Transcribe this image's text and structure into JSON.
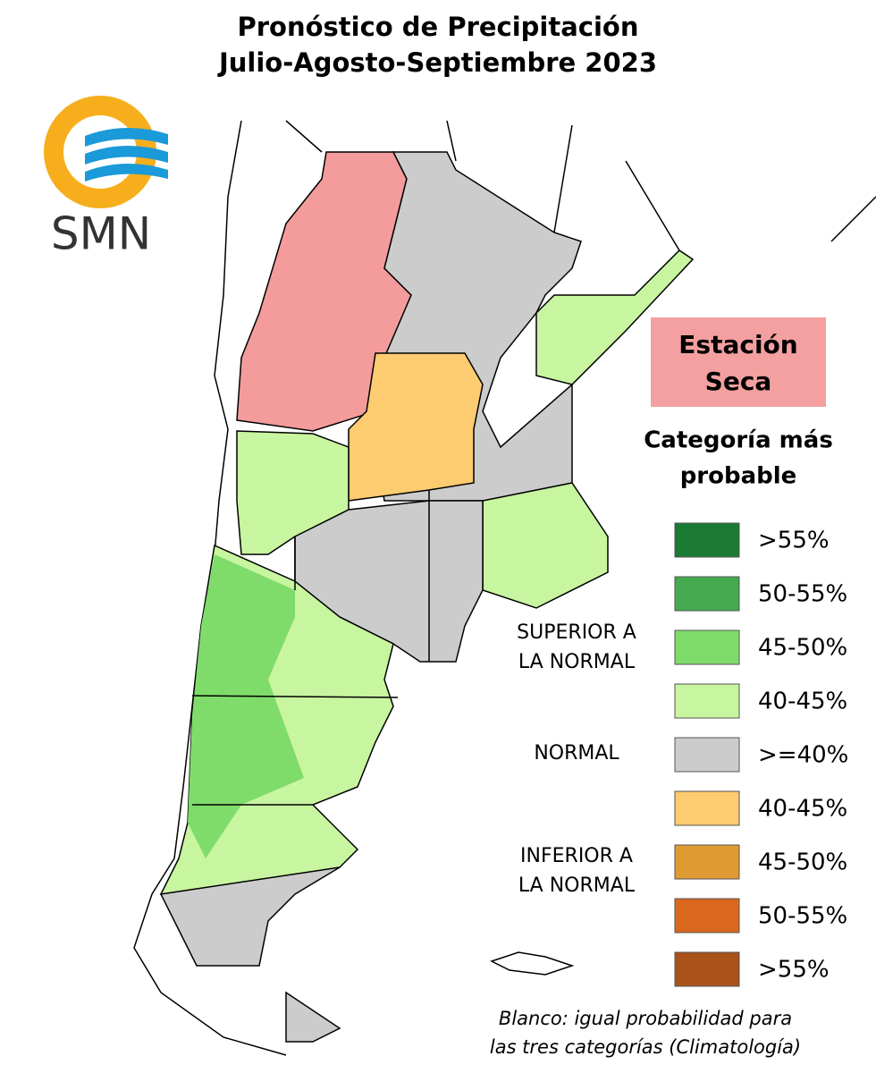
{
  "header": {
    "title_line1": "Pronóstico de Precipitación",
    "title_line2": "Julio-Agosto-Septiembre 2023"
  },
  "logo": {
    "text": "SMN"
  },
  "dry_season": {
    "label_line1": "Estación",
    "label_line2": "Seca"
  },
  "legend": {
    "title_line1": "Categoría más",
    "title_line2": "probable",
    "items": [
      {
        "label": ">55%",
        "color": "#1b7a34"
      },
      {
        "label": "50-55%",
        "color": "#44a94f"
      },
      {
        "label": "45-50%",
        "color": "#7fdc6a"
      },
      {
        "label": "40-45%",
        "color": "#c8f5a0"
      },
      {
        "label": ">=40%",
        "color": "#cccccc"
      },
      {
        "label": "40-45%",
        "color": "#fdcb70"
      },
      {
        "label": "45-50%",
        "color": "#e09a33"
      },
      {
        "label": "50-55%",
        "color": "#d9681e"
      },
      {
        "label": ">55%",
        "color": "#a9521a"
      }
    ],
    "groups": [
      {
        "line1": "SUPERIOR A",
        "line2": "LA NORMAL"
      },
      {
        "line1": "NORMAL"
      },
      {
        "line1": "INFERIOR A",
        "line2": "LA NORMAL"
      }
    ]
  },
  "footnote": {
    "line1": "Blanco: igual probabilidad para",
    "line2": "las tres categorías (Climatología)"
  }
}
